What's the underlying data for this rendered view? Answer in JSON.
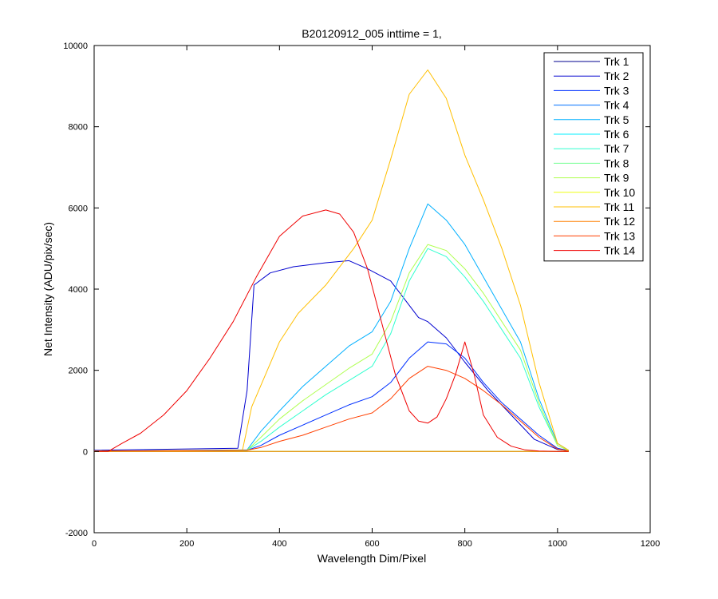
{
  "chart_data": {
    "type": "line",
    "title": "B20120912_005 inttime = 1,",
    "xlabel": "Wavelength Dim/Pixel",
    "ylabel": "Net Intensity (ADU/pix/sec)",
    "xlim": [
      0,
      1200
    ],
    "ylim": [
      -2000,
      10000
    ],
    "xticks": [
      0,
      200,
      400,
      600,
      800,
      1000,
      1200
    ],
    "yticks": [
      -2000,
      0,
      2000,
      4000,
      6000,
      8000,
      10000
    ],
    "xtick_labels": [
      "0",
      "200",
      "400",
      "600",
      "800",
      "1000",
      "1200"
    ],
    "ytick_labels": [
      "-2000",
      "0",
      "2000",
      "4000",
      "6000",
      "8000",
      "10000"
    ],
    "grid": false,
    "legend_position": "top-right",
    "series": [
      {
        "name": "Trk 1",
        "color": "#00008F",
        "x": [
          0,
          1024
        ],
        "y": [
          0,
          0
        ]
      },
      {
        "name": "Trk 2",
        "color": "#0000CF",
        "x": [
          0,
          310,
          330,
          345,
          380,
          430,
          500,
          550,
          590,
          640,
          680,
          700,
          720,
          760,
          800,
          850,
          900,
          950,
          1000,
          1024
        ],
        "y": [
          30,
          80,
          1500,
          4100,
          4400,
          4550,
          4650,
          4700,
          4500,
          4200,
          3600,
          3300,
          3200,
          2800,
          2200,
          1500,
          900,
          300,
          50,
          20
        ]
      },
      {
        "name": "Trk 3",
        "color": "#0030FF",
        "x": [
          0,
          330,
          360,
          400,
          450,
          500,
          550,
          600,
          640,
          680,
          720,
          760,
          800,
          840,
          880,
          920,
          960,
          1000,
          1024
        ],
        "y": [
          10,
          30,
          150,
          400,
          650,
          900,
          1150,
          1350,
          1700,
          2300,
          2700,
          2650,
          2300,
          1700,
          1200,
          800,
          400,
          80,
          20
        ]
      },
      {
        "name": "Trk 4",
        "color": "#0070FF",
        "x": [
          0,
          1024
        ],
        "y": [
          0,
          0
        ]
      },
      {
        "name": "Trk 5",
        "color": "#00B0FF",
        "x": [
          0,
          330,
          360,
          400,
          450,
          500,
          550,
          600,
          640,
          680,
          720,
          760,
          800,
          840,
          880,
          920,
          960,
          1000,
          1024
        ],
        "y": [
          10,
          40,
          500,
          1000,
          1600,
          2100,
          2600,
          2950,
          3700,
          5000,
          6100,
          5700,
          5100,
          4300,
          3500,
          2700,
          1300,
          200,
          30
        ]
      },
      {
        "name": "Trk 6",
        "color": "#00EFFF",
        "x": [
          0,
          1024
        ],
        "y": [
          0,
          0
        ]
      },
      {
        "name": "Trk 7",
        "color": "#30FFCF",
        "x": [
          0,
          330,
          360,
          400,
          450,
          500,
          550,
          600,
          640,
          680,
          720,
          760,
          800,
          840,
          880,
          920,
          960,
          1000,
          1024
        ],
        "y": [
          10,
          30,
          250,
          600,
          1000,
          1400,
          1750,
          2100,
          2900,
          4200,
          5000,
          4800,
          4300,
          3700,
          3000,
          2300,
          1100,
          150,
          20
        ]
      },
      {
        "name": "Trk 8",
        "color": "#70FF8F",
        "x": [
          0,
          1024
        ],
        "y": [
          0,
          0
        ]
      },
      {
        "name": "Trk 9",
        "color": "#AFFF50",
        "x": [
          0,
          330,
          360,
          400,
          450,
          500,
          550,
          600,
          640,
          680,
          720,
          760,
          800,
          840,
          880,
          920,
          960,
          1000,
          1024
        ],
        "y": [
          10,
          30,
          350,
          800,
          1250,
          1650,
          2050,
          2400,
          3200,
          4400,
          5100,
          4950,
          4500,
          3900,
          3200,
          2500,
          1200,
          150,
          20
        ]
      },
      {
        "name": "Trk 10",
        "color": "#EFFF10",
        "x": [
          0,
          1024
        ],
        "y": [
          0,
          0
        ]
      },
      {
        "name": "Trk 11",
        "color": "#FFBF00",
        "x": [
          0,
          320,
          340,
          370,
          400,
          440,
          500,
          560,
          600,
          640,
          680,
          720,
          760,
          800,
          840,
          880,
          920,
          960,
          1000,
          1024
        ],
        "y": [
          10,
          30,
          1100,
          1900,
          2700,
          3400,
          4100,
          5000,
          5700,
          7200,
          8800,
          9400,
          8700,
          7300,
          6200,
          5000,
          3600,
          1700,
          200,
          30
        ]
      },
      {
        "name": "Trk 12",
        "color": "#FF8000",
        "x": [
          0,
          1024
        ],
        "y": [
          0,
          0
        ]
      },
      {
        "name": "Trk 13",
        "color": "#FF3F00",
        "x": [
          0,
          330,
          360,
          400,
          450,
          500,
          550,
          600,
          640,
          680,
          720,
          760,
          800,
          840,
          880,
          920,
          960,
          1000,
          1024
        ],
        "y": [
          10,
          30,
          100,
          250,
          400,
          600,
          800,
          950,
          1300,
          1800,
          2100,
          2000,
          1800,
          1500,
          1150,
          750,
          350,
          60,
          10
        ]
      },
      {
        "name": "Trk 14",
        "color": "#EF0000",
        "x": [
          0,
          30,
          60,
          100,
          150,
          200,
          250,
          300,
          350,
          400,
          450,
          500,
          530,
          560,
          590,
          620,
          650,
          680,
          700,
          720,
          740,
          760,
          780,
          800,
          820,
          840,
          870,
          900,
          930,
          960,
          1000,
          1024
        ],
        "y": [
          0,
          0,
          200,
          450,
          900,
          1500,
          2300,
          3200,
          4300,
          5300,
          5800,
          5950,
          5850,
          5400,
          4500,
          3200,
          1900,
          1000,
          750,
          700,
          850,
          1300,
          1900,
          2700,
          1900,
          900,
          350,
          130,
          40,
          10,
          0,
          0
        ]
      }
    ]
  }
}
